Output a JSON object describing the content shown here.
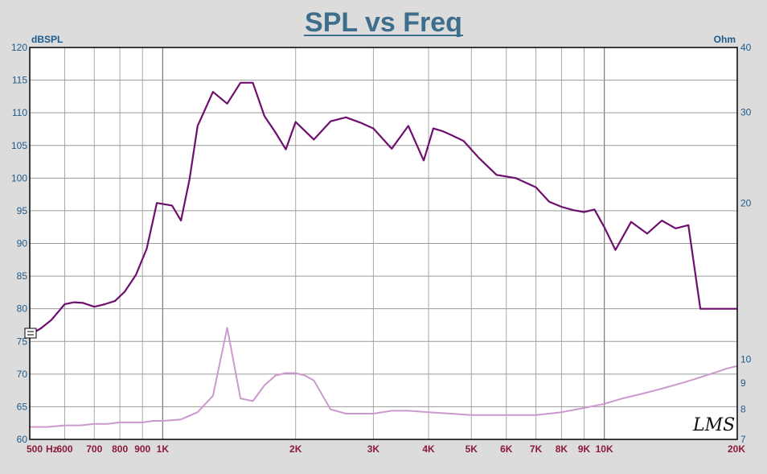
{
  "chart_data": {
    "type": "line",
    "title": "SPL vs Freq",
    "xscale": "log",
    "xlim": [
      500,
      20000
    ],
    "x_ticks": [
      {
        "v": 500,
        "label": "500"
      },
      {
        "v": 600,
        "label": "600"
      },
      {
        "v": 700,
        "label": "700"
      },
      {
        "v": 800,
        "label": "800"
      },
      {
        "v": 900,
        "label": "900"
      },
      {
        "v": 1000,
        "label": "1K"
      },
      {
        "v": 2000,
        "label": "2K"
      },
      {
        "v": 3000,
        "label": "3K"
      },
      {
        "v": 4000,
        "label": "4K"
      },
      {
        "v": 5000,
        "label": "5K"
      },
      {
        "v": 6000,
        "label": "6K"
      },
      {
        "v": 7000,
        "label": "7K"
      },
      {
        "v": 8000,
        "label": "8K"
      },
      {
        "v": 9000,
        "label": "9K"
      },
      {
        "v": 10000,
        "label": "10K"
      },
      {
        "v": 20000,
        "label": "20K"
      }
    ],
    "x_unit": "Hz",
    "ylabel_left": "dBSPL",
    "ylim_left": [
      60,
      120
    ],
    "y_ticks_left": [
      60,
      65,
      70,
      75,
      80,
      85,
      90,
      95,
      100,
      105,
      110,
      115,
      120
    ],
    "ylabel_right": "Ohm",
    "yscale_right": "log",
    "ylim_right": [
      7,
      40
    ],
    "y_ticks_right": [
      7,
      8,
      9,
      10,
      20,
      30,
      40
    ],
    "grid": true,
    "logo": "LMS",
    "series": [
      {
        "axis": "left",
        "color": "#6e0f6e",
        "x": [
          500,
          530,
          560,
          600,
          630,
          660,
          700,
          740,
          780,
          820,
          870,
          920,
          970,
          1050,
          1100,
          1150,
          1200,
          1300,
          1400,
          1500,
          1600,
          1700,
          1800,
          1900,
          2000,
          2200,
          2400,
          2600,
          2800,
          3000,
          3300,
          3600,
          3900,
          4100,
          4300,
          4500,
          4800,
          5200,
          5700,
          6300,
          7000,
          7500,
          8000,
          8500,
          9000,
          9500,
          10000,
          10600,
          11500,
          12500,
          13500,
          14500,
          15500,
          16500,
          17500,
          18500,
          20000
        ],
        "y": [
          76.0,
          77.0,
          78.3,
          80.7,
          81.0,
          80.9,
          80.3,
          80.7,
          81.2,
          82.6,
          85.2,
          89.2,
          96.2,
          95.8,
          93.5,
          99.8,
          108.0,
          113.2,
          111.4,
          114.6,
          114.6,
          109.5,
          107.0,
          104.4,
          108.6,
          105.9,
          108.7,
          109.3,
          108.5,
          107.6,
          104.5,
          108.0,
          102.7,
          107.6,
          107.2,
          106.6,
          105.7,
          103.1,
          100.5,
          100.0,
          98.6,
          96.4,
          95.6,
          95.1,
          94.8,
          95.2,
          92.5,
          89.0,
          93.3,
          91.5,
          93.5,
          92.3,
          92.8,
          80.0,
          80.0,
          80.0,
          80.0
        ]
      },
      {
        "axis": "right",
        "color": "#cc99cc",
        "x": [
          500,
          550,
          600,
          650,
          700,
          750,
          800,
          850,
          900,
          950,
          1000,
          1100,
          1200,
          1300,
          1400,
          1500,
          1600,
          1700,
          1800,
          1900,
          2000,
          2100,
          2200,
          2400,
          2600,
          2800,
          3000,
          3300,
          3600,
          4000,
          4500,
          5000,
          5500,
          6000,
          6500,
          7000,
          7500,
          8000,
          9000,
          10000,
          11000,
          12000,
          13000,
          14000,
          15000,
          16000,
          17000,
          18000,
          19000,
          20000
        ],
        "y": [
          7.4,
          7.4,
          7.45,
          7.45,
          7.5,
          7.5,
          7.55,
          7.55,
          7.55,
          7.6,
          7.6,
          7.65,
          7.9,
          8.5,
          11.5,
          8.4,
          8.3,
          8.9,
          9.3,
          9.4,
          9.4,
          9.3,
          9.1,
          8.0,
          7.85,
          7.85,
          7.85,
          7.95,
          7.95,
          7.9,
          7.85,
          7.8,
          7.8,
          7.8,
          7.8,
          7.8,
          7.85,
          7.9,
          8.05,
          8.2,
          8.4,
          8.55,
          8.7,
          8.85,
          9.0,
          9.15,
          9.3,
          9.45,
          9.6,
          9.7
        ]
      }
    ]
  }
}
